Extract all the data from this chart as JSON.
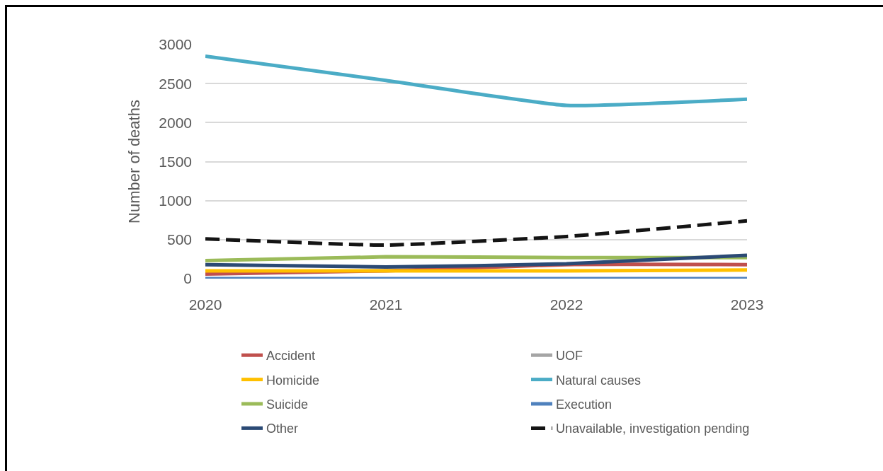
{
  "chart_data": {
    "type": "line",
    "ylabel": "Number of deaths",
    "x": [
      2020,
      2021,
      2022,
      2023
    ],
    "xlim": [
      2020,
      2023
    ],
    "xticks": [
      2020,
      2021,
      2022,
      2023
    ],
    "ylim": [
      0,
      3000
    ],
    "yticks": [
      0,
      500,
      1000,
      1500,
      2000,
      2500,
      3000
    ],
    "grid": "y",
    "legend": "bottom",
    "marker": "none",
    "line_style": "solid",
    "series": [
      {
        "name": "Accident",
        "color": "#c0504d",
        "values": [
          60,
          100,
          180,
          180
        ]
      },
      {
        "name": "UOF",
        "color": "#a5a5a5",
        "values": [
          null,
          null,
          null,
          null
        ]
      },
      {
        "name": "Homicide",
        "color": "#ffc000",
        "values": [
          100,
          100,
          100,
          110
        ]
      },
      {
        "name": "Natural causes",
        "color": "#4bacc6",
        "values": [
          2850,
          2540,
          2220,
          2300
        ]
      },
      {
        "name": "Suicide",
        "color": "#9bbb59",
        "values": [
          230,
          280,
          270,
          270
        ]
      },
      {
        "name": "Execution",
        "color": "#4f81bd",
        "values": [
          0,
          0,
          0,
          0
        ]
      },
      {
        "name": "Other",
        "color": "#2b4a75",
        "values": [
          180,
          150,
          190,
          300
        ]
      },
      {
        "name": "Unavailable, investigation pending",
        "color": "#141414",
        "line_style": "dashed",
        "values": [
          510,
          430,
          540,
          740
        ]
      }
    ]
  }
}
